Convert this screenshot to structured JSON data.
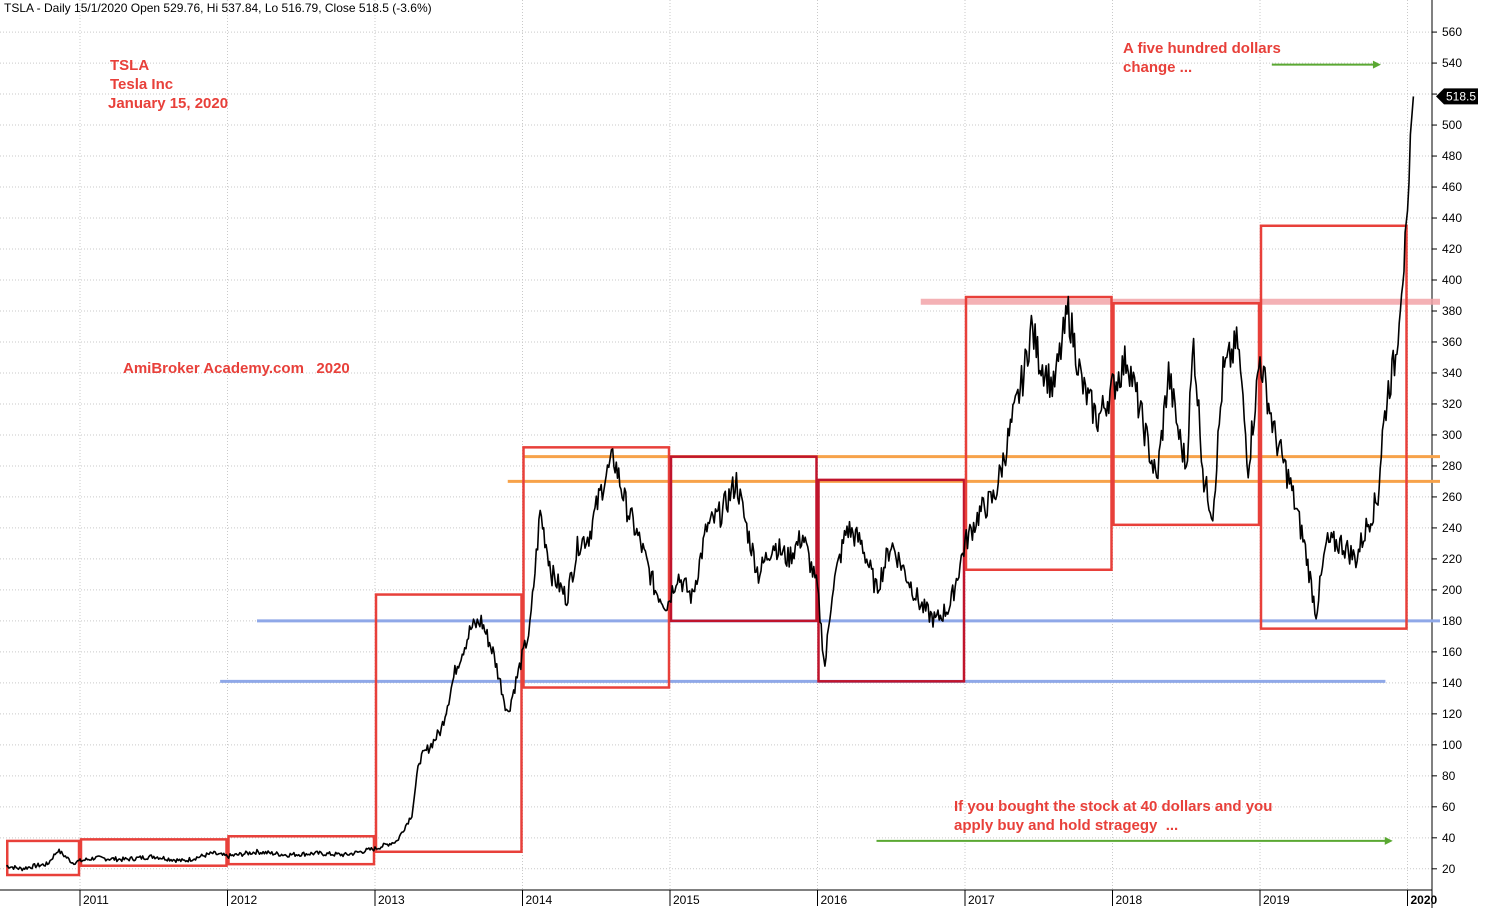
{
  "header": "TSLA - Daily 15/1/2020 Open 529.76, Hi 537.84, Lo 516.79, Close 518.5 (-3.6%)",
  "annotations": {
    "ticker": "TSLA",
    "company": "Tesla Inc",
    "date": "January 15, 2020",
    "watermark": "AmiBroker Academy.com   2020",
    "top_note_line1": "A five hundred dollars",
    "top_note_line2": "change ...",
    "bottom_note_line1": "If you bought the stock at 40 dollars and you",
    "bottom_note_line2": "apply buy and hold stragegy  ..."
  },
  "last_price_label": "518.5",
  "colors": {
    "price": "#000000",
    "box": "#e8403a",
    "box_dark": "#c0142c",
    "orange_line": "#f7a24a",
    "blue_line": "#8fa8e8",
    "pink_line": "#f2a3a8",
    "green_arrow": "#5aa832",
    "grid": "#c9c9c9",
    "text_red": "#e8403a"
  },
  "chart_data": {
    "type": "line",
    "title": "TSLA - Daily 15/1/2020 Open 529.76, Hi 537.84, Lo 516.79, Close 518.5 (-3.6%)",
    "xlabel": "",
    "ylabel": "",
    "xlim": [
      2010.5,
      2020.1
    ],
    "ylim": [
      10,
      570
    ],
    "yticks": [
      20,
      40,
      60,
      80,
      100,
      120,
      140,
      160,
      180,
      200,
      220,
      240,
      260,
      280,
      300,
      320,
      340,
      360,
      380,
      400,
      420,
      440,
      460,
      480,
      500,
      520,
      540,
      560
    ],
    "xticks": [
      "2011",
      "2012",
      "2013",
      "2014",
      "2015",
      "2016",
      "2017",
      "2018",
      "2019",
      "2020"
    ],
    "xtick_values": [
      2011,
      2012,
      2013,
      2014,
      2015,
      2016,
      2017,
      2018,
      2019,
      2020
    ],
    "grid": true,
    "series": [
      {
        "x": [
          2010.5,
          2010.6,
          2010.7,
          2010.78,
          2010.85,
          2010.95,
          2011.1,
          2011.3,
          2011.5,
          2011.7,
          2011.9,
          2012.0,
          2012.2,
          2012.4,
          2012.6,
          2012.8,
          2013.0,
          2013.15,
          2013.25,
          2013.3,
          2013.38,
          2013.45,
          2013.55,
          2013.65,
          2013.72,
          2013.8,
          2013.9,
          2013.98,
          2014.05,
          2014.12,
          2014.2,
          2014.3,
          2014.38,
          2014.45,
          2014.55,
          2014.62,
          2014.7,
          2014.8,
          2014.9,
          2014.98,
          2015.05,
          2015.15,
          2015.25,
          2015.35,
          2015.45,
          2015.52,
          2015.6,
          2015.7,
          2015.8,
          2015.9,
          2016.0,
          2016.05,
          2016.1,
          2016.2,
          2016.3,
          2016.4,
          2016.5,
          2016.6,
          2016.7,
          2016.8,
          2016.9,
          2017.0,
          2017.1,
          2017.2,
          2017.3,
          2017.4,
          2017.45,
          2017.5,
          2017.6,
          2017.7,
          2017.8,
          2017.9,
          2018.0,
          2018.1,
          2018.2,
          2018.3,
          2018.38,
          2018.45,
          2018.5,
          2018.55,
          2018.62,
          2018.68,
          2018.75,
          2018.85,
          2018.92,
          2019.0,
          2019.1,
          2019.2,
          2019.3,
          2019.38,
          2019.45,
          2019.55,
          2019.65,
          2019.72,
          2019.8,
          2019.83,
          2019.87,
          2019.92,
          2019.96,
          2020.0,
          2020.02,
          2020.04
        ],
        "values": [
          22,
          20,
          22,
          23,
          32,
          24,
          27,
          26,
          28,
          25,
          30,
          28,
          31,
          29,
          30,
          29,
          33,
          38,
          55,
          90,
          100,
          110,
          150,
          175,
          180,
          160,
          120,
          150,
          175,
          250,
          210,
          195,
          230,
          235,
          270,
          285,
          255,
          230,
          200,
          190,
          210,
          195,
          240,
          250,
          270,
          240,
          210,
          230,
          220,
          235,
          200,
          150,
          200,
          240,
          230,
          200,
          230,
          210,
          190,
          180,
          190,
          230,
          250,
          260,
          300,
          340,
          370,
          350,
          330,
          380,
          330,
          310,
          330,
          350,
          310,
          270,
          340,
          300,
          280,
          360,
          270,
          250,
          340,
          360,
          280,
          350,
          300,
          270,
          230,
          185,
          230,
          230,
          220,
          240,
          260,
          300,
          330,
          350,
          400,
          430,
          480,
          518.5
        ]
      }
    ],
    "boxes": [
      {
        "x0": 2010.5,
        "x1": 2011.0,
        "y0": 16,
        "y1": 38
      },
      {
        "x0": 2011.0,
        "x1": 2012.0,
        "y0": 22,
        "y1": 39
      },
      {
        "x0": 2012.0,
        "x1": 2013.0,
        "y0": 23,
        "y1": 41
      },
      {
        "x0": 2013.0,
        "x1": 2014.0,
        "y0": 31,
        "y1": 197
      },
      {
        "x0": 2014.0,
        "x1": 2015.0,
        "y0": 137,
        "y1": 292
      },
      {
        "x0": 2015.0,
        "x1": 2016.0,
        "y0": 180,
        "y1": 286,
        "dark": true
      },
      {
        "x0": 2016.0,
        "x1": 2017.0,
        "y0": 141,
        "y1": 271,
        "dark": true
      },
      {
        "x0": 2017.0,
        "x1": 2018.0,
        "y0": 213,
        "y1": 389
      },
      {
        "x0": 2018.0,
        "x1": 2019.0,
        "y0": 242,
        "y1": 385
      },
      {
        "x0": 2019.0,
        "x1": 2020.0,
        "y0": 175,
        "y1": 435
      }
    ],
    "hlines": [
      {
        "y": 286,
        "x0": 2014.0,
        "x1": 2020.3,
        "color": "orange"
      },
      {
        "y": 270,
        "x0": 2013.9,
        "x1": 2020.3,
        "color": "orange"
      },
      {
        "y": 180,
        "x0": 2012.2,
        "x1": 2020.3,
        "color": "blue"
      },
      {
        "y": 141,
        "x0": 2011.95,
        "x1": 2019.85,
        "color": "blue"
      },
      {
        "y": 386,
        "x0": 2016.7,
        "x1": 2020.3,
        "color": "pink"
      }
    ],
    "arrows": [
      {
        "y": 539,
        "x0": 2019.08,
        "x1": 2019.82
      },
      {
        "y": 38,
        "x0": 2016.4,
        "x1": 2019.9
      }
    ]
  }
}
